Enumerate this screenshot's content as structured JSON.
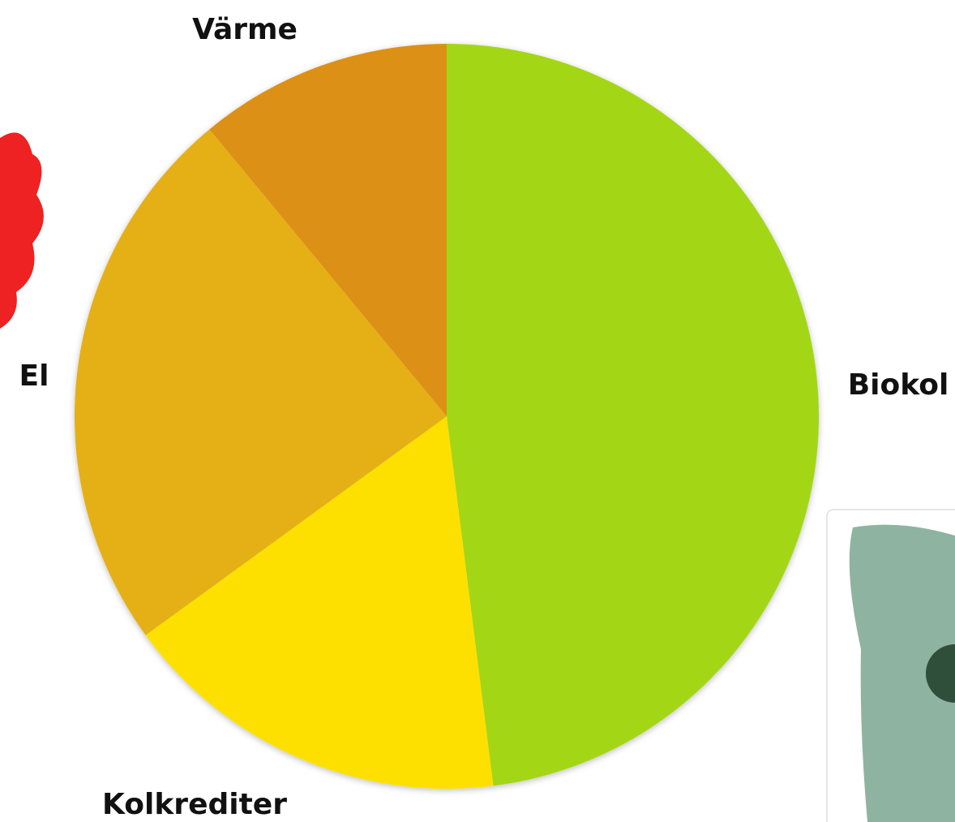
{
  "chart_data": {
    "type": "pie",
    "categories": [
      "Biokol",
      "Kolkrediter",
      "El",
      "Värme"
    ],
    "values": [
      48,
      17,
      24,
      11
    ],
    "colors": [
      "#a3d715",
      "#fde000",
      "#e5b012",
      "#dd9018"
    ]
  }
}
